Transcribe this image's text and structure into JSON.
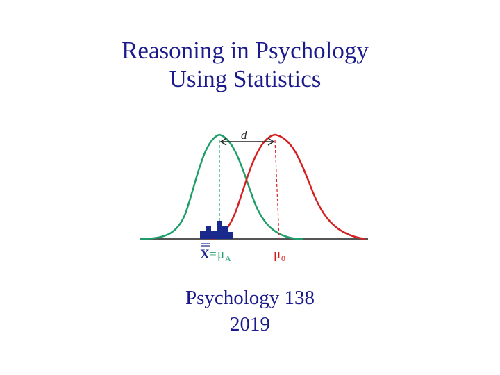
{
  "slide": {
    "title_line1": "Reasoning in Psychology",
    "title_line2": "Using Statistics",
    "course": "Psychology 138",
    "year": "2019"
  },
  "figure": {
    "distance_label": "d",
    "sample_mean_label": "X",
    "equals": "=",
    "mu_symbol": "μ",
    "alt_subscript": "A",
    "null_subscript": "0",
    "colors": {
      "alternative": "#1f9e6a",
      "null": "#d42020",
      "histogram": "#1a2a8c",
      "axis": "#555555",
      "arrow": "#222222"
    }
  }
}
